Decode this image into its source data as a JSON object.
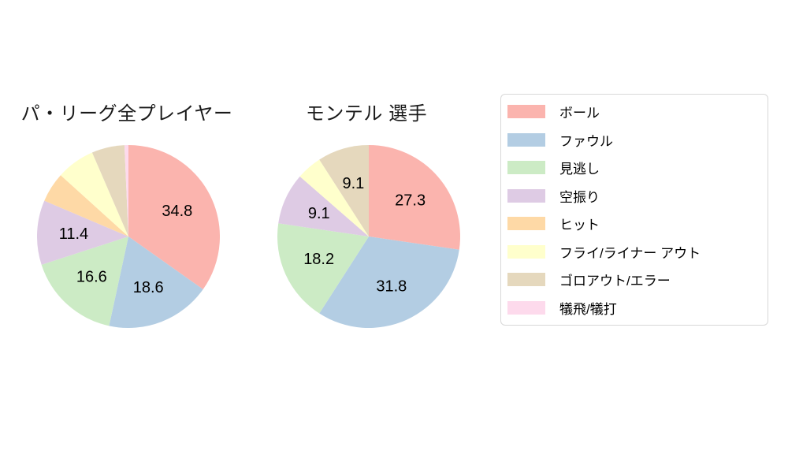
{
  "page": {
    "background": "#ffffff"
  },
  "legend": {
    "items": [
      {
        "label": "ボール",
        "color": "#fbb4ae"
      },
      {
        "label": "ファウル",
        "color": "#b3cde3"
      },
      {
        "label": "見逃し",
        "color": "#ccebc5"
      },
      {
        "label": "空振り",
        "color": "#decbe4"
      },
      {
        "label": "ヒット",
        "color": "#fed9a6"
      },
      {
        "label": "フライ/ライナー アウト",
        "color": "#ffffcc"
      },
      {
        "label": "ゴロアウト/エラー",
        "color": "#e5d8bd"
      },
      {
        "label": "犠飛/犠打",
        "color": "#fddaec"
      }
    ]
  },
  "chart_data": [
    {
      "type": "pie",
      "title": "パ・リーグ全プレイヤー",
      "units": "percent",
      "start_angle": "12-oclock",
      "direction": "clockwise",
      "label_distance": 0.6,
      "slices": [
        {
          "name": "ボール",
          "value": 34.8,
          "label": "34.8",
          "color": "#fbb4ae"
        },
        {
          "name": "ファウル",
          "value": 18.6,
          "label": "18.6",
          "color": "#b3cde3"
        },
        {
          "name": "見逃し",
          "value": 16.6,
          "label": "16.6",
          "color": "#ccebc5"
        },
        {
          "name": "空振り",
          "value": 11.4,
          "label": "11.4",
          "color": "#decbe4"
        },
        {
          "name": "ヒット",
          "value": 5.3,
          "label": "",
          "color": "#fed9a6"
        },
        {
          "name": "フライ/ライナー アウト",
          "value": 6.8,
          "label": "",
          "color": "#ffffcc"
        },
        {
          "name": "ゴロアウト/エラー",
          "value": 5.8,
          "label": "",
          "color": "#e5d8bd"
        },
        {
          "name": "犠飛/犠打",
          "value": 0.7,
          "label": "",
          "color": "#fddaec"
        }
      ]
    },
    {
      "type": "pie",
      "title": "モンテル 選手",
      "units": "percent",
      "start_angle": "12-oclock",
      "direction": "clockwise",
      "label_distance": 0.6,
      "slices": [
        {
          "name": "ボール",
          "value": 27.3,
          "label": "27.3",
          "color": "#fbb4ae"
        },
        {
          "name": "ファウル",
          "value": 31.8,
          "label": "31.8",
          "color": "#b3cde3"
        },
        {
          "name": "見逃し",
          "value": 18.2,
          "label": "18.2",
          "color": "#ccebc5"
        },
        {
          "name": "空振り",
          "value": 9.1,
          "label": "9.1",
          "color": "#decbe4"
        },
        {
          "name": "フライ/ライナー アウト",
          "value": 4.5,
          "label": "",
          "color": "#ffffcc"
        },
        {
          "name": "ゴロアウト/エラー",
          "value": 9.1,
          "label": "9.1",
          "color": "#e5d8bd"
        }
      ]
    }
  ]
}
